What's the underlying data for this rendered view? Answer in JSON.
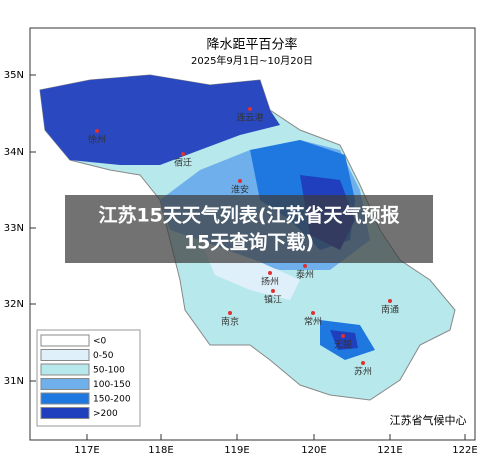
{
  "map": {
    "title": "降水距平百分率",
    "subtitle": "2025年9月1日~10月20日",
    "lat_labels": [
      "35N",
      "34N",
      "33N",
      "32N",
      "31N"
    ],
    "lon_labels": [
      "117E",
      "118E",
      "119E",
      "120E",
      "121E",
      "122E"
    ],
    "legend": [
      "<0",
      "0-50",
      "50-100",
      "100-150",
      "150-200",
      ">200"
    ],
    "cities": [
      "徐州",
      "连云港",
      "宿迁",
      "淮安",
      "扬州",
      "泰州",
      "镇江",
      "南京",
      "常州",
      "无锡",
      "苏州",
      "南通"
    ],
    "source": "江苏省气候中心"
  },
  "banner": {
    "line1": "江苏15天天气列表(江苏省天气预报",
    "line2": "15天查询下载)"
  }
}
